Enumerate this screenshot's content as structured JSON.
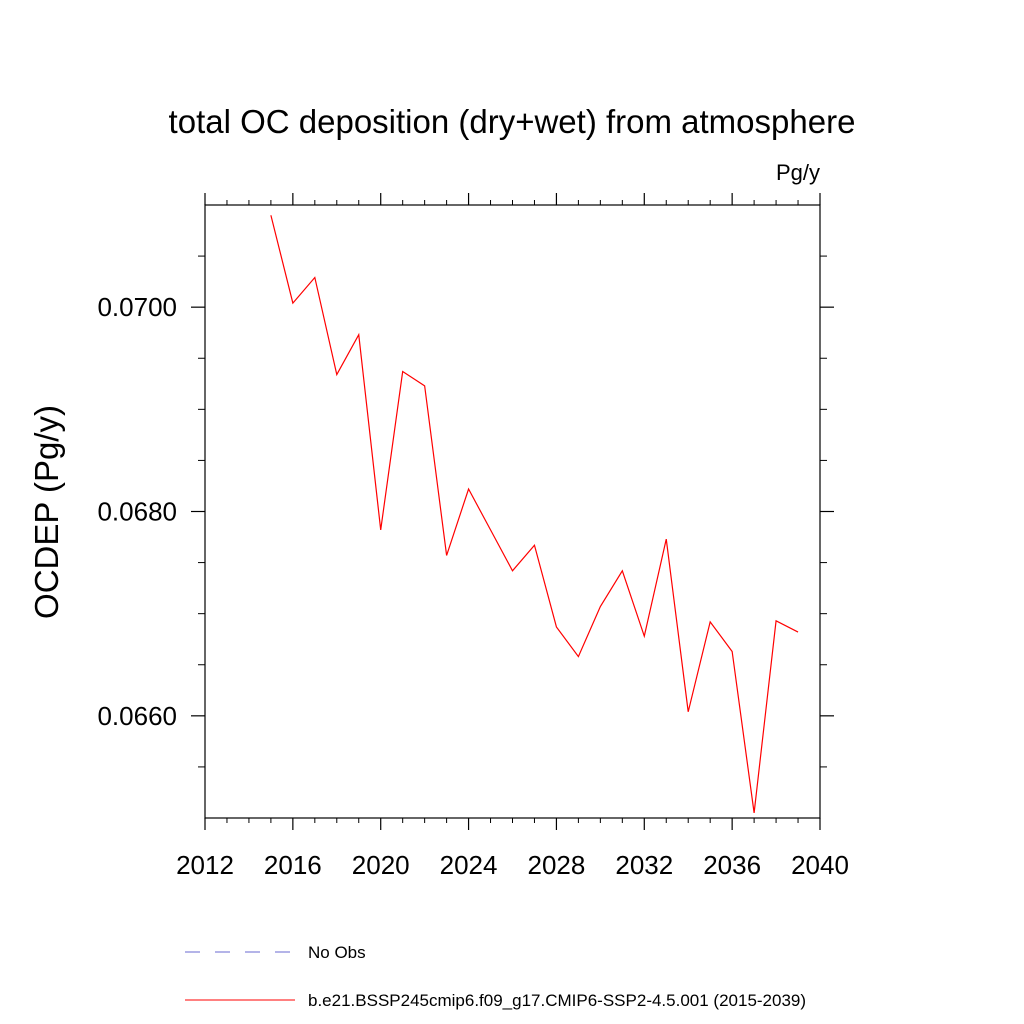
{
  "chart_data": {
    "type": "line",
    "title": "total OC deposition (dry+wet) from atmosphere",
    "units": "Pg/y",
    "ylabel": "OCDEP  (Pg/y)",
    "xlabel": "",
    "xlim": [
      2012,
      2040
    ],
    "ylim": [
      0.065,
      0.071
    ],
    "x_ticks": [
      2012,
      2016,
      2020,
      2024,
      2028,
      2032,
      2036,
      2040
    ],
    "x_tick_labels": [
      "2012",
      "2016",
      "2020",
      "2024",
      "2028",
      "2032",
      "2036",
      "2040"
    ],
    "y_ticks": [
      0.066,
      0.068,
      0.07
    ],
    "y_tick_labels": [
      "0.0660",
      "0.0680",
      "0.0700"
    ],
    "y_minor_step": 0.0005,
    "x": [
      2015,
      2016,
      2017,
      2018,
      2019,
      2020,
      2021,
      2022,
      2023,
      2024,
      2025,
      2026,
      2027,
      2028,
      2029,
      2030,
      2031,
      2032,
      2033,
      2034,
      2035,
      2036,
      2037,
      2038,
      2039
    ],
    "series": [
      {
        "name": "b.e21.BSSP245cmip6.f09_g17.CMIP6-SSP2-4.5.001 (2015-2039)",
        "color": "#ff0000",
        "values": [
          0.0709,
          0.07004,
          0.07029,
          0.06934,
          0.06973,
          0.06782,
          0.06937,
          0.06923,
          0.06757,
          0.06822,
          0.06782,
          0.06742,
          0.06767,
          0.06687,
          0.06658,
          0.06707,
          0.06742,
          0.06678,
          0.06773,
          0.06604,
          0.06692,
          0.06663,
          0.06505,
          0.06693,
          0.06682
        ]
      }
    ],
    "legend": [
      {
        "label": "No Obs",
        "color": "#6a6ad0",
        "style": "dashed"
      },
      {
        "label": "b.e21.BSSP245cmip6.f09_g17.CMIP6-SSP2-4.5.001 (2015-2039)",
        "color": "#ff0000",
        "style": "solid"
      }
    ],
    "grid": false,
    "legend_position": "bottom"
  }
}
